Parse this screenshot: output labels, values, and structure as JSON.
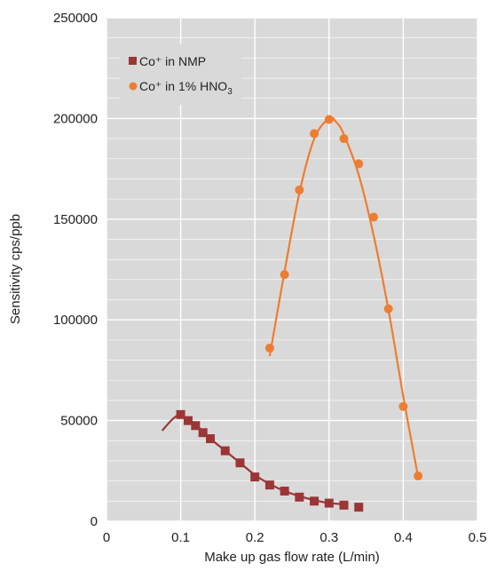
{
  "chart_data": {
    "type": "scatter",
    "xlabel": "Make up gas flow rate (L/min)",
    "ylabel": "Sensitivity cps/ppb",
    "xlim": [
      0,
      0.5
    ],
    "ylim": [
      0,
      250000
    ],
    "x_ticks": [
      "0",
      "0.1",
      "0.2",
      "0.3",
      "0.4",
      "0.5"
    ],
    "y_ticks": [
      "0",
      "50000",
      "100000",
      "150000",
      "200000",
      "250000"
    ],
    "grid": true,
    "legend_position": "top-left",
    "colors": {
      "plot_bg": "#d9d9d9",
      "grid": "#ffffff"
    },
    "series": [
      {
        "name": "Co⁺ in NMP",
        "color": "#9b3636",
        "marker": "square",
        "points": [
          [
            0.1,
            53000
          ],
          [
            0.11,
            50000
          ],
          [
            0.12,
            47500
          ],
          [
            0.13,
            44000
          ],
          [
            0.14,
            41000
          ],
          [
            0.16,
            35000
          ],
          [
            0.18,
            29000
          ],
          [
            0.2,
            22000
          ],
          [
            0.22,
            18000
          ],
          [
            0.24,
            15000
          ],
          [
            0.26,
            12000
          ],
          [
            0.28,
            10000
          ],
          [
            0.3,
            9000
          ],
          [
            0.32,
            8000
          ],
          [
            0.34,
            7000
          ]
        ],
        "trendline": [
          [
            0.075,
            45000
          ],
          [
            0.09,
            51000
          ],
          [
            0.1,
            52500
          ],
          [
            0.12,
            48000
          ],
          [
            0.14,
            41000
          ],
          [
            0.16,
            35000
          ],
          [
            0.18,
            29000
          ],
          [
            0.2,
            23000
          ],
          [
            0.22,
            18500
          ],
          [
            0.24,
            15000
          ],
          [
            0.26,
            12500
          ],
          [
            0.28,
            10500
          ],
          [
            0.3,
            9000
          ],
          [
            0.32,
            8500
          ]
        ]
      },
      {
        "name": "Co⁺ in 1% HNO",
        "name_subscript": "3",
        "color": "#ed7d31",
        "marker": "circle",
        "points": [
          [
            0.22,
            86000
          ],
          [
            0.24,
            122500
          ],
          [
            0.26,
            164500
          ],
          [
            0.28,
            192500
          ],
          [
            0.3,
            199500
          ],
          [
            0.32,
            190000
          ],
          [
            0.34,
            177500
          ],
          [
            0.36,
            151000
          ],
          [
            0.38,
            105500
          ],
          [
            0.4,
            57000
          ],
          [
            0.42,
            22500
          ]
        ],
        "trendline": [
          [
            0.22,
            82000
          ],
          [
            0.24,
            124000
          ],
          [
            0.26,
            163000
          ],
          [
            0.28,
            190000
          ],
          [
            0.3,
            200000
          ],
          [
            0.31,
            198000
          ],
          [
            0.32,
            192000
          ],
          [
            0.34,
            172000
          ],
          [
            0.36,
            142000
          ],
          [
            0.38,
            105000
          ],
          [
            0.4,
            62000
          ],
          [
            0.42,
            22000
          ]
        ]
      }
    ]
  }
}
